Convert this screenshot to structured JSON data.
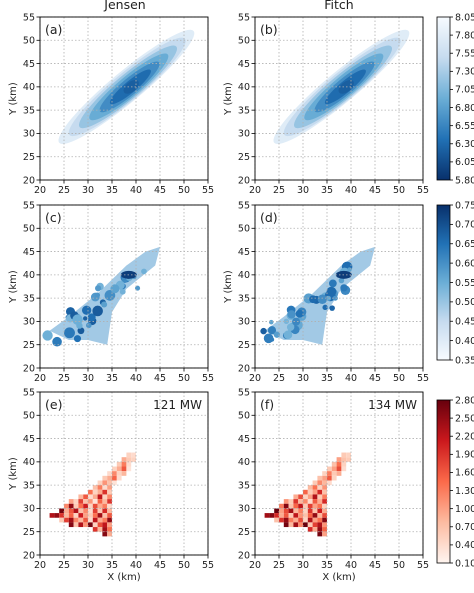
{
  "figure": {
    "columns": [
      "Jensen",
      "Fitch"
    ],
    "xlabel": "X (km)",
    "ylabel": "Y (km)",
    "xticks": [
      "20",
      "25",
      "30",
      "35",
      "40",
      "45",
      "50",
      "55"
    ],
    "yticks": [
      "20",
      "25",
      "30",
      "35",
      "40",
      "45",
      "50",
      "55"
    ]
  },
  "panels": [
    {
      "label": "(a)",
      "annotation": ""
    },
    {
      "label": "(b)",
      "annotation": ""
    },
    {
      "label": "(c)",
      "annotation": ""
    },
    {
      "label": "(d)",
      "annotation": ""
    },
    {
      "label": "(e)",
      "annotation": "121 MW"
    },
    {
      "label": "(f)",
      "annotation": "134 MW"
    }
  ],
  "colorbars": [
    {
      "ticks": [
        "8.05",
        "7.80",
        "7.55",
        "7.30",
        "7.05",
        "6.80",
        "6.55",
        "6.30",
        "6.05",
        "5.80"
      ],
      "colormap": "Blues",
      "reversed": true
    },
    {
      "ticks": [
        "0.75",
        "0.70",
        "0.65",
        "0.60",
        "0.55",
        "0.50",
        "0.45",
        "0.40",
        "0.35"
      ],
      "colormap": "Blues",
      "reversed": false
    },
    {
      "ticks": [
        "2.80",
        "2.50",
        "2.20",
        "1.90",
        "1.60",
        "1.30",
        "1.00",
        "0.70",
        "0.40",
        "0.10"
      ],
      "colormap": "Reds",
      "reversed": false
    }
  ],
  "colors": {
    "blue_dark": "#08306b",
    "blue_light": "#f7fbff",
    "red_dark": "#67000d",
    "red_light": "#fff5f0",
    "grid": "#b0b0b0"
  },
  "chart_data": [
    {
      "type": "heatmap",
      "title": "Jensen",
      "panel": "(a)",
      "xlabel": "",
      "ylabel": "Y (km)",
      "xlim": [
        20,
        55
      ],
      "ylim": [
        20,
        55
      ],
      "grid": true,
      "colorbar_range": [
        5.8,
        8.05
      ],
      "field": {
        "ridge_start": [
          24,
          28
        ],
        "ridge_end": [
          52,
          52
        ],
        "peak": [
          39,
          40
        ],
        "width": 3.2
      }
    },
    {
      "type": "heatmap",
      "title": "Fitch",
      "panel": "(b)",
      "xlabel": "",
      "ylabel": "Y (km)",
      "xlim": [
        20,
        55
      ],
      "ylim": [
        20,
        55
      ],
      "grid": true,
      "colorbar_range": [
        5.8,
        8.05
      ],
      "field": {
        "ridge_start": [
          24,
          28
        ],
        "ridge_end": [
          52,
          52
        ],
        "peak": [
          39,
          40
        ],
        "width": 3.2
      }
    },
    {
      "type": "heatmap",
      "panel": "(c)",
      "xlabel": "",
      "ylabel": "Y (km)",
      "xlim": [
        20,
        55
      ],
      "ylim": [
        20,
        55
      ],
      "grid": true,
      "colorbar_range": [
        0.35,
        0.75
      ],
      "region": [
        [
          22,
          28
        ],
        [
          26,
          31
        ],
        [
          32,
          36
        ],
        [
          38,
          42
        ],
        [
          42,
          45
        ],
        [
          45,
          46
        ],
        [
          44,
          42
        ],
        [
          38,
          37
        ],
        [
          35,
          32
        ],
        [
          34,
          25
        ],
        [
          30,
          26
        ],
        [
          26,
          26
        ]
      ]
    },
    {
      "type": "heatmap",
      "panel": "(d)",
      "xlabel": "",
      "ylabel": "Y (km)",
      "xlim": [
        20,
        55
      ],
      "ylim": [
        20,
        55
      ],
      "grid": true,
      "colorbar_range": [
        0.35,
        0.75
      ],
      "region": [
        [
          22,
          28
        ],
        [
          26,
          31
        ],
        [
          32,
          36
        ],
        [
          38,
          42
        ],
        [
          42,
          45
        ],
        [
          45,
          46
        ],
        [
          44,
          42
        ],
        [
          38,
          37
        ],
        [
          35,
          32
        ],
        [
          34,
          25
        ],
        [
          30,
          26
        ],
        [
          26,
          26
        ]
      ]
    },
    {
      "type": "heatmap",
      "panel": "(e)",
      "xlabel": "X (km)",
      "ylabel": "Y (km)",
      "xlim": [
        20,
        55
      ],
      "ylim": [
        20,
        55
      ],
      "grid": true,
      "colorbar_range": [
        0.1,
        2.8
      ],
      "annotation": "121 MW",
      "cell_size_km": 1,
      "cells": [
        [
          38,
          41,
          0.5
        ],
        [
          39,
          41,
          0.4
        ],
        [
          37,
          40,
          0.9
        ],
        [
          38,
          40,
          0.6
        ],
        [
          39,
          40,
          0.5
        ],
        [
          36,
          39,
          0.6
        ],
        [
          37,
          39,
          1.3
        ],
        [
          38,
          39,
          0.4
        ],
        [
          35,
          38,
          0.5
        ],
        [
          36,
          38,
          0.9
        ],
        [
          37,
          38,
          1.6
        ],
        [
          38,
          38,
          0.3
        ],
        [
          34,
          37,
          0.4
        ],
        [
          35,
          37,
          1.2
        ],
        [
          36,
          37,
          0.5
        ],
        [
          37,
          37,
          0.8
        ],
        [
          33,
          36,
          0.6
        ],
        [
          34,
          36,
          0.9
        ],
        [
          35,
          36,
          1.5
        ],
        [
          36,
          36,
          0.4
        ],
        [
          32,
          35,
          0.5
        ],
        [
          33,
          35,
          1.1
        ],
        [
          34,
          35,
          0.7
        ],
        [
          35,
          35,
          0.3
        ],
        [
          31,
          34,
          0.7
        ],
        [
          32,
          34,
          1.3
        ],
        [
          33,
          34,
          0.4
        ],
        [
          34,
          34,
          1.0
        ],
        [
          30,
          33,
          1.4
        ],
        [
          31,
          33,
          0.5
        ],
        [
          32,
          33,
          0.9
        ],
        [
          33,
          33,
          1.9
        ],
        [
          34,
          33,
          0.6
        ],
        [
          28,
          32,
          0.8
        ],
        [
          29,
          32,
          1.6
        ],
        [
          30,
          32,
          0.4
        ],
        [
          31,
          32,
          0.9
        ],
        [
          32,
          32,
          2.2
        ],
        [
          33,
          32,
          0.5
        ],
        [
          34,
          32,
          1.2
        ],
        [
          26,
          31,
          1.0
        ],
        [
          27,
          31,
          0.5
        ],
        [
          28,
          31,
          1.8
        ],
        [
          29,
          31,
          0.7
        ],
        [
          30,
          31,
          1.1
        ],
        [
          31,
          31,
          0.3
        ],
        [
          32,
          31,
          1.5
        ],
        [
          33,
          31,
          0.8
        ],
        [
          34,
          31,
          1.9
        ],
        [
          25,
          30,
          1.2
        ],
        [
          26,
          30,
          2.5
        ],
        [
          27,
          30,
          0.6
        ],
        [
          28,
          30,
          1.4
        ],
        [
          29,
          30,
          2.1
        ],
        [
          30,
          30,
          0.5
        ],
        [
          31,
          30,
          1.7
        ],
        [
          32,
          30,
          0.9
        ],
        [
          33,
          30,
          1.3
        ],
        [
          34,
          30,
          0.4
        ],
        [
          24,
          29,
          2.7
        ],
        [
          25,
          29,
          0.9
        ],
        [
          26,
          29,
          1.6
        ],
        [
          27,
          29,
          2.3
        ],
        [
          28,
          29,
          0.7
        ],
        [
          29,
          29,
          1.2
        ],
        [
          30,
          29,
          0.4
        ],
        [
          31,
          29,
          1.8
        ],
        [
          32,
          29,
          0.6
        ],
        [
          33,
          29,
          2.0
        ],
        [
          34,
          29,
          0.8
        ],
        [
          22,
          28,
          2.3
        ],
        [
          23,
          28,
          2.5
        ],
        [
          24,
          28,
          1.9
        ],
        [
          25,
          28,
          0.8
        ],
        [
          26,
          28,
          1.5
        ],
        [
          27,
          28,
          0.5
        ],
        [
          28,
          28,
          2.1
        ],
        [
          29,
          28,
          1.0
        ],
        [
          30,
          28,
          0.6
        ],
        [
          31,
          28,
          1.4
        ],
        [
          32,
          28,
          2.4
        ],
        [
          33,
          28,
          0.7
        ],
        [
          34,
          28,
          1.6
        ],
        [
          24,
          27,
          0.6
        ],
        [
          25,
          27,
          1.8
        ],
        [
          26,
          27,
          2.4
        ],
        [
          27,
          27,
          1.2
        ],
        [
          28,
          27,
          0.8
        ],
        [
          29,
          27,
          1.6
        ],
        [
          30,
          27,
          0.4
        ],
        [
          31,
          27,
          2.2
        ],
        [
          32,
          27,
          0.9
        ],
        [
          33,
          27,
          1.3
        ],
        [
          34,
          27,
          2.5
        ],
        [
          26,
          26,
          2.6
        ],
        [
          27,
          26,
          0.7
        ],
        [
          28,
          26,
          2.3
        ],
        [
          29,
          26,
          1.1
        ],
        [
          30,
          26,
          2.7
        ],
        [
          31,
          26,
          0.5
        ],
        [
          32,
          26,
          1.7
        ],
        [
          33,
          26,
          2.2
        ],
        [
          34,
          26,
          1.0
        ],
        [
          31,
          25,
          1.9
        ],
        [
          32,
          25,
          0.8
        ],
        [
          33,
          25,
          2.4
        ],
        [
          34,
          25,
          1.4
        ],
        [
          33,
          24,
          2.6
        ],
        [
          34,
          24,
          0.9
        ]
      ]
    },
    {
      "type": "heatmap",
      "panel": "(f)",
      "xlabel": "X (km)",
      "ylabel": "",
      "xlim": [
        20,
        55
      ],
      "ylim": [
        20,
        55
      ],
      "grid": true,
      "colorbar_range": [
        0.1,
        2.8
      ],
      "annotation": "134 MW",
      "cell_size_km": 1,
      "cells": [
        [
          38,
          41,
          0.6
        ],
        [
          39,
          41,
          0.5
        ],
        [
          37,
          40,
          1.0
        ],
        [
          38,
          40,
          0.7
        ],
        [
          39,
          40,
          0.6
        ],
        [
          36,
          39,
          0.7
        ],
        [
          37,
          39,
          1.4
        ],
        [
          38,
          39,
          0.5
        ],
        [
          35,
          38,
          0.6
        ],
        [
          36,
          38,
          1.0
        ],
        [
          37,
          38,
          1.7
        ],
        [
          38,
          38,
          0.4
        ],
        [
          34,
          37,
          0.5
        ],
        [
          35,
          37,
          1.3
        ],
        [
          36,
          37,
          0.6
        ],
        [
          37,
          37,
          0.9
        ],
        [
          33,
          36,
          0.7
        ],
        [
          34,
          36,
          1.0
        ],
        [
          35,
          36,
          1.6
        ],
        [
          36,
          36,
          0.5
        ],
        [
          32,
          35,
          0.6
        ],
        [
          33,
          35,
          1.2
        ],
        [
          34,
          35,
          0.8
        ],
        [
          35,
          35,
          0.4
        ],
        [
          31,
          34,
          0.8
        ],
        [
          32,
          34,
          1.4
        ],
        [
          33,
          34,
          0.5
        ],
        [
          34,
          34,
          1.1
        ],
        [
          30,
          33,
          1.5
        ],
        [
          31,
          33,
          0.6
        ],
        [
          32,
          33,
          1.0
        ],
        [
          33,
          33,
          2.0
        ],
        [
          34,
          33,
          0.7
        ],
        [
          28,
          32,
          0.9
        ],
        [
          29,
          32,
          1.7
        ],
        [
          30,
          32,
          0.5
        ],
        [
          31,
          32,
          1.0
        ],
        [
          32,
          32,
          2.3
        ],
        [
          33,
          32,
          0.6
        ],
        [
          34,
          32,
          1.3
        ],
        [
          26,
          31,
          1.1
        ],
        [
          27,
          31,
          0.6
        ],
        [
          28,
          31,
          1.9
        ],
        [
          29,
          31,
          0.8
        ],
        [
          30,
          31,
          1.2
        ],
        [
          31,
          31,
          0.4
        ],
        [
          32,
          31,
          1.6
        ],
        [
          33,
          31,
          0.9
        ],
        [
          34,
          31,
          2.0
        ],
        [
          25,
          30,
          1.3
        ],
        [
          26,
          30,
          2.6
        ],
        [
          27,
          30,
          0.7
        ],
        [
          28,
          30,
          1.5
        ],
        [
          29,
          30,
          2.2
        ],
        [
          30,
          30,
          0.6
        ],
        [
          31,
          30,
          1.8
        ],
        [
          32,
          30,
          1.0
        ],
        [
          33,
          30,
          1.4
        ],
        [
          34,
          30,
          0.5
        ],
        [
          24,
          29,
          2.8
        ],
        [
          25,
          29,
          1.0
        ],
        [
          26,
          29,
          1.7
        ],
        [
          27,
          29,
          2.4
        ],
        [
          28,
          29,
          0.8
        ],
        [
          29,
          29,
          1.3
        ],
        [
          30,
          29,
          0.5
        ],
        [
          31,
          29,
          1.9
        ],
        [
          32,
          29,
          0.7
        ],
        [
          33,
          29,
          2.1
        ],
        [
          34,
          29,
          0.9
        ],
        [
          22,
          28,
          2.4
        ],
        [
          23,
          28,
          2.6
        ],
        [
          24,
          28,
          2.0
        ],
        [
          25,
          28,
          0.9
        ],
        [
          26,
          28,
          1.6
        ],
        [
          27,
          28,
          0.6
        ],
        [
          28,
          28,
          2.2
        ],
        [
          29,
          28,
          1.1
        ],
        [
          30,
          28,
          0.7
        ],
        [
          31,
          28,
          1.5
        ],
        [
          32,
          28,
          2.5
        ],
        [
          33,
          28,
          0.8
        ],
        [
          34,
          28,
          1.7
        ],
        [
          24,
          27,
          0.7
        ],
        [
          25,
          27,
          1.9
        ],
        [
          26,
          27,
          2.5
        ],
        [
          27,
          27,
          1.3
        ],
        [
          28,
          27,
          0.9
        ],
        [
          29,
          27,
          1.7
        ],
        [
          30,
          27,
          0.5
        ],
        [
          31,
          27,
          2.3
        ],
        [
          32,
          27,
          1.0
        ],
        [
          33,
          27,
          1.4
        ],
        [
          34,
          27,
          2.6
        ],
        [
          26,
          26,
          2.7
        ],
        [
          27,
          26,
          0.8
        ],
        [
          28,
          26,
          2.4
        ],
        [
          29,
          26,
          1.2
        ],
        [
          30,
          26,
          2.8
        ],
        [
          31,
          26,
          0.6
        ],
        [
          32,
          26,
          1.8
        ],
        [
          33,
          26,
          2.3
        ],
        [
          34,
          26,
          1.1
        ],
        [
          31,
          25,
          2.0
        ],
        [
          32,
          25,
          0.9
        ],
        [
          33,
          25,
          2.5
        ],
        [
          34,
          25,
          1.5
        ],
        [
          33,
          24,
          2.7
        ],
        [
          34,
          24,
          1.0
        ]
      ]
    }
  ]
}
